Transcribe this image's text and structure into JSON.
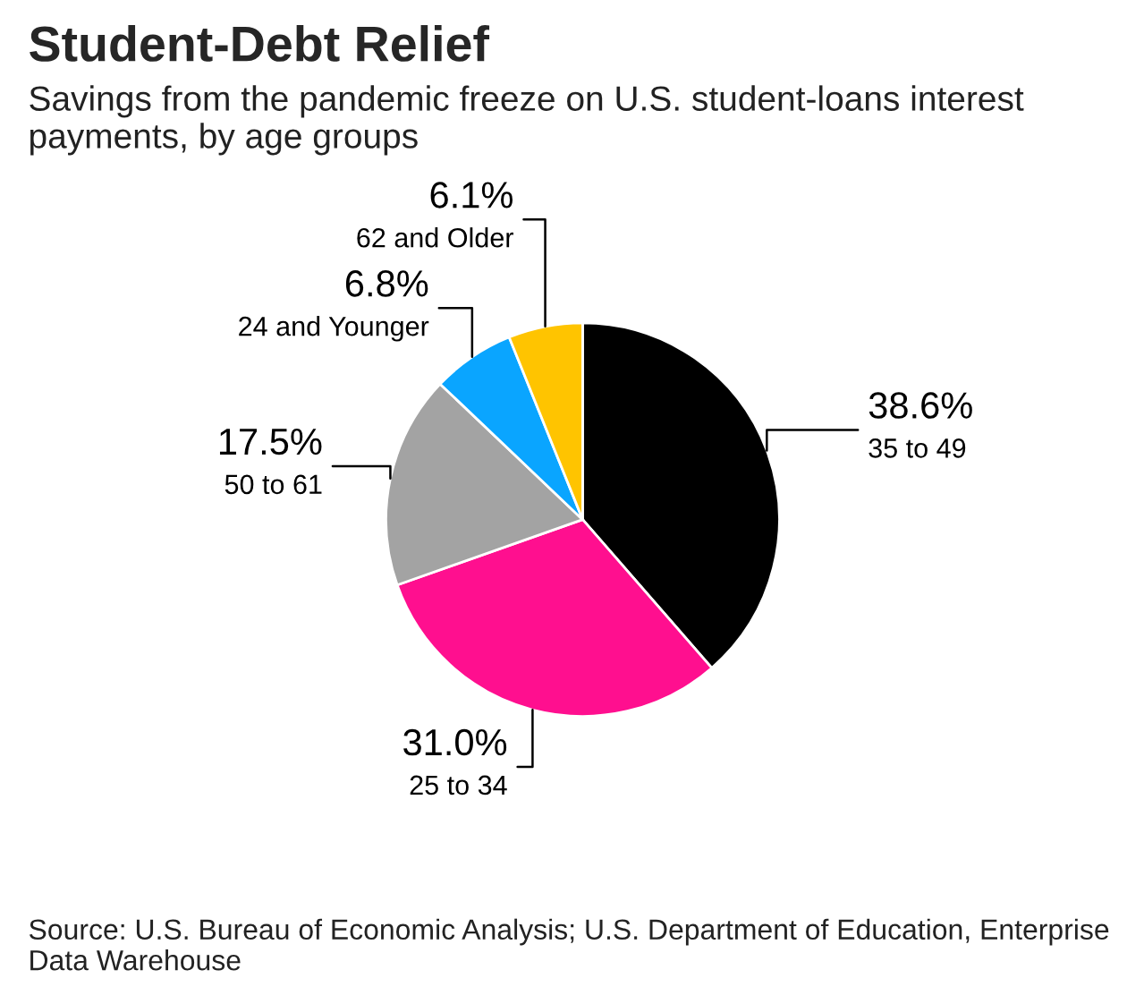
{
  "chart_data": {
    "type": "pie",
    "title": "Student-Debt Relief",
    "subtitle": "Savings from the pandemic freeze on U.S. student-loans interest payments, by age groups",
    "categories": [
      "35 to 49",
      "25 to 34",
      "50 to 61",
      "24 and Younger",
      "62 and Older"
    ],
    "values": [
      38.6,
      31.0,
      17.5,
      6.8,
      6.1
    ],
    "value_labels": [
      "38.6%",
      "31.0%",
      "17.5%",
      "6.8%",
      "6.1%"
    ],
    "colors": [
      "#000000",
      "#ff0f8f",
      "#a3a3a3",
      "#0aa5ff",
      "#ffc400"
    ],
    "annotations": [
      "Source: U.S. Bureau of Economic Analysis; U.S. Department of Education, Enterprise Data Warehouse"
    ]
  }
}
